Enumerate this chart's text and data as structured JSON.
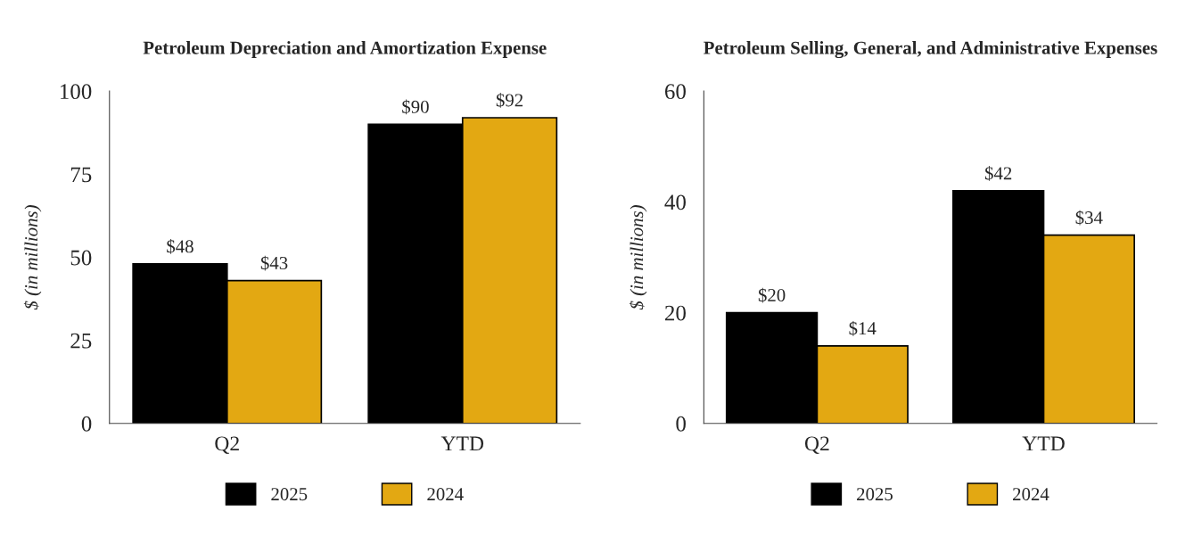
{
  "chart_data": [
    {
      "type": "bar",
      "title": "Petroleum Depreciation and Amortization Expense",
      "ylabel": "$ (in millions)",
      "categories": [
        "Q2",
        "YTD"
      ],
      "series": [
        {
          "name": "2025",
          "color": "#000000",
          "values": [
            48,
            90
          ],
          "value_labels": [
            "$48",
            "$90"
          ]
        },
        {
          "name": "2024",
          "color": "#e3a812",
          "values": [
            43,
            92
          ],
          "value_labels": [
            "$43",
            "$92"
          ]
        }
      ],
      "ylim": [
        0,
        100
      ],
      "yticks": [
        0,
        25,
        50,
        75,
        100
      ],
      "grid": false,
      "legend": "bottom"
    },
    {
      "type": "bar",
      "title": "Petroleum Selling, General, and Administrative Expenses",
      "ylabel": "$ (in millions)",
      "categories": [
        "Q2",
        "YTD"
      ],
      "series": [
        {
          "name": "2025",
          "color": "#000000",
          "values": [
            20,
            42
          ],
          "value_labels": [
            "$20",
            "$42"
          ]
        },
        {
          "name": "2024",
          "color": "#e3a812",
          "values": [
            14,
            34
          ],
          "value_labels": [
            "$14",
            "$34"
          ]
        }
      ],
      "ylim": [
        0,
        60
      ],
      "yticks": [
        0,
        20,
        40,
        60
      ],
      "grid": false,
      "legend": "bottom"
    }
  ]
}
